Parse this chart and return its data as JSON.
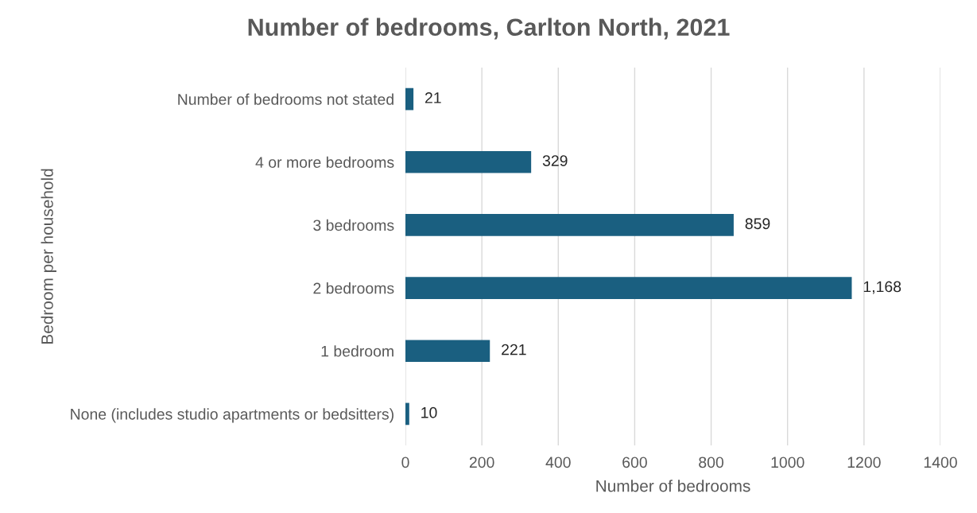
{
  "chart_data": {
    "type": "bar",
    "orientation": "horizontal",
    "title": "Number of bedrooms, Carlton North, 2021",
    "xlabel": "Number of bedrooms",
    "ylabel": "Bedroom per household",
    "categories": [
      "Number of bedrooms not stated",
      "4 or more bedrooms",
      "3 bedrooms",
      "2 bedrooms",
      "1 bedroom",
      "None (includes studio apartments or bedsitters)"
    ],
    "values": [
      21,
      329,
      859,
      1168,
      221,
      10
    ],
    "value_labels": [
      "21",
      "329",
      "859",
      "1,168",
      "221",
      "10"
    ],
    "color": "#1a5f80",
    "xlim": [
      0,
      1400
    ],
    "xticks": [
      0,
      200,
      400,
      600,
      800,
      1000,
      1200,
      1400
    ],
    "grid": "x",
    "legend": false
  }
}
